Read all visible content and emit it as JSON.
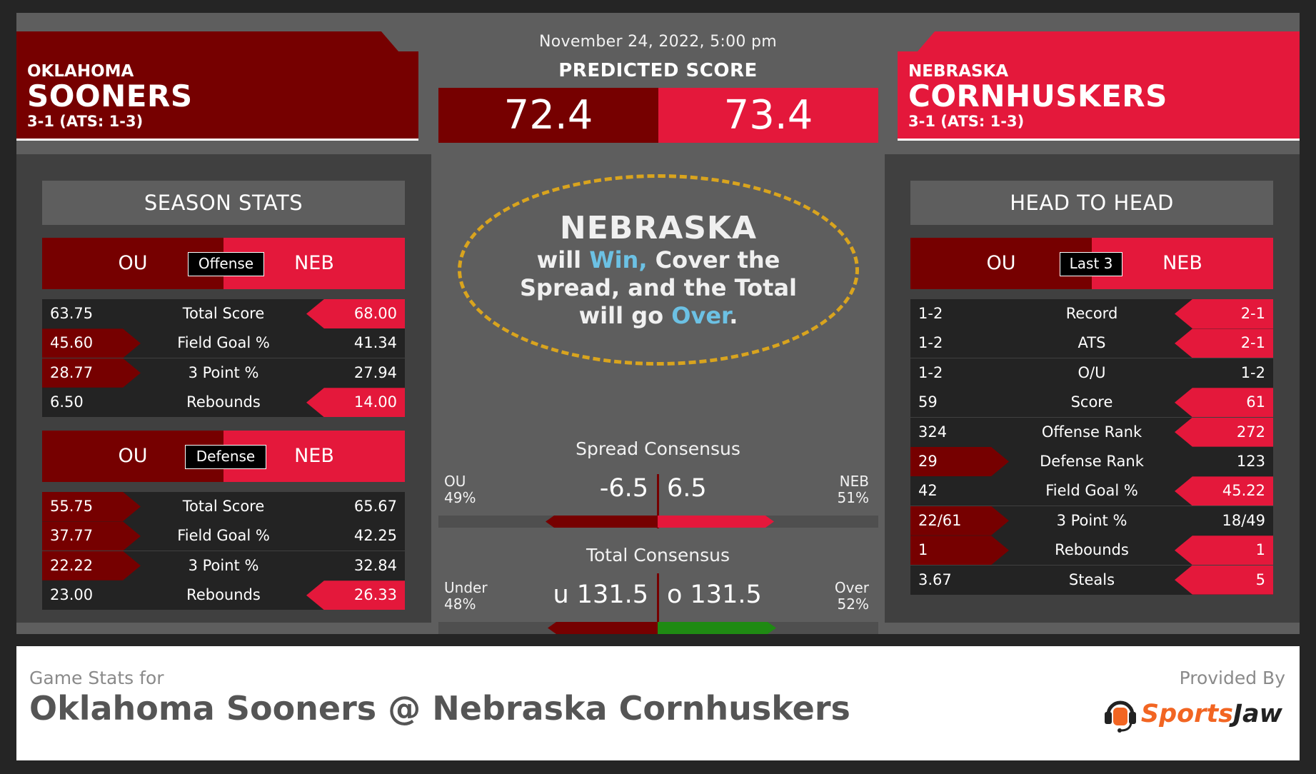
{
  "header": {
    "date": "November 24, 2022, 5:00 pm",
    "predicted_title": "PREDICTED SCORE",
    "away": {
      "city": "OKLAHOMA",
      "name": "SOONERS",
      "record": "3-1 (ATS: 1-3)",
      "score": "72.4",
      "color": "#760000"
    },
    "home": {
      "city": "NEBRASKA",
      "name": "CORNHUSKERS",
      "record": "3-1 (ATS: 1-3)",
      "score": "73.4",
      "color": "#e4183b"
    }
  },
  "verdict": {
    "team": "NEBRASKA",
    "p1": "will ",
    "win": "Win,",
    "p2": " Cover the",
    "p3": "Spread, and the Total",
    "p4": "will go ",
    "over": "Over",
    "p5": "."
  },
  "season_stats": {
    "title": "SEASON STATS",
    "left_abbr": "OU",
    "right_abbr": "NEB",
    "offense": {
      "label": "Offense",
      "rows": [
        {
          "left": "63.75",
          "stat": "Total Score",
          "right": "68.00",
          "winner": "right"
        },
        {
          "left": "45.60",
          "stat": "Field Goal %",
          "right": "41.34",
          "winner": "left"
        },
        {
          "left": "28.77",
          "stat": "3 Point %",
          "right": "27.94",
          "winner": "left"
        },
        {
          "left": "6.50",
          "stat": "Rebounds",
          "right": "14.00",
          "winner": "right"
        }
      ]
    },
    "defense": {
      "label": "Defense",
      "rows": [
        {
          "left": "55.75",
          "stat": "Total Score",
          "right": "65.67",
          "winner": "left"
        },
        {
          "left": "37.77",
          "stat": "Field Goal %",
          "right": "42.25",
          "winner": "left"
        },
        {
          "left": "22.22",
          "stat": "3 Point %",
          "right": "32.84",
          "winner": "left"
        },
        {
          "left": "23.00",
          "stat": "Rebounds",
          "right": "26.33",
          "winner": "right"
        }
      ]
    }
  },
  "head_to_head": {
    "title": "HEAD TO HEAD",
    "left_abbr": "OU",
    "right_abbr": "NEB",
    "label": "Last 3",
    "rows": [
      {
        "left": "1-2",
        "stat": "Record",
        "right": "2-1",
        "winner": "right"
      },
      {
        "left": "1-2",
        "stat": "ATS",
        "right": "2-1",
        "winner": "right"
      },
      {
        "left": "1-2",
        "stat": "O/U",
        "right": "1-2",
        "winner": "none"
      },
      {
        "left": "59",
        "stat": "Score",
        "right": "61",
        "winner": "right"
      },
      {
        "left": "324",
        "stat": "Offense Rank",
        "right": "272",
        "winner": "right"
      },
      {
        "left": "29",
        "stat": "Defense Rank",
        "right": "123",
        "winner": "left"
      },
      {
        "left": "42",
        "stat": "Field Goal %",
        "right": "45.22",
        "winner": "right"
      },
      {
        "left": "22/61",
        "stat": "3 Point %",
        "right": "18/49",
        "winner": "left"
      },
      {
        "left": "1",
        "stat": "Rebounds",
        "right": "1",
        "winner": "both"
      },
      {
        "left": "3.67",
        "stat": "Steals",
        "right": "5",
        "winner": "right"
      }
    ]
  },
  "spread": {
    "title": "Spread Consensus",
    "left_team": "OU",
    "left_pct": "49%",
    "left_value": 0.49,
    "right_team": "NEB",
    "right_pct": "51%",
    "right_value": 0.51,
    "left_line": "-6.5",
    "right_line": "6.5"
  },
  "total": {
    "title": "Total Consensus",
    "left_label": "Under",
    "left_pct": "48%",
    "left_value": 0.48,
    "right_label": "Over",
    "right_pct": "52%",
    "right_value": 0.52,
    "left_line": "u 131.5",
    "right_line": "o 131.5",
    "over_color": "#1f8a13"
  },
  "footer": {
    "subtitle": "Game Stats for",
    "title": "Oklahoma Sooners @ Nebraska Cornhuskers",
    "provided": "Provided By",
    "brand_a": "Sports",
    "brand_b": "Jaw",
    "brand_color": "#f26522"
  }
}
